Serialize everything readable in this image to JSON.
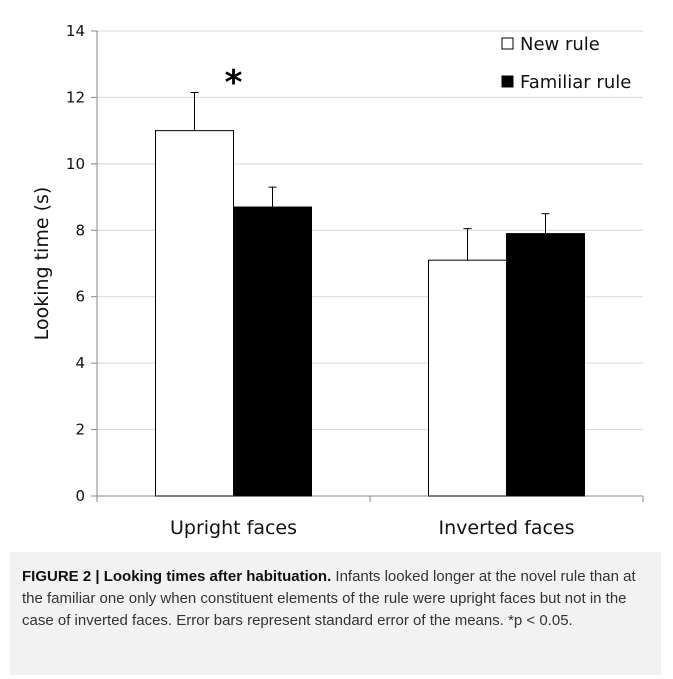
{
  "chart_data": {
    "type": "bar",
    "categories": [
      "Upright faces",
      "Inverted faces"
    ],
    "series": [
      {
        "name": "New rule",
        "values": [
          11.0,
          7.1
        ],
        "errors": [
          1.15,
          0.95
        ],
        "fill": "#ffffff"
      },
      {
        "name": "Familiar rule",
        "values": [
          8.7,
          7.9
        ],
        "errors": [
          0.6,
          0.6
        ],
        "fill": "#000000"
      }
    ],
    "ylabel": "Looking time (s)",
    "xlabel": "",
    "ylim": [
      0,
      14
    ],
    "yticks": [
      "0",
      "2",
      "4",
      "6",
      "8",
      "10",
      "12",
      "14"
    ],
    "grid": true,
    "legend_position": "top-right",
    "annotations": [
      {
        "text": "*",
        "category": "Upright faces"
      }
    ]
  },
  "caption": {
    "label": "FIGURE 2 |",
    "title": "Looking times after habituation.",
    "text": "Infants looked longer at the novel rule than at the familiar one only when constituent elements of the rule were upright faces but not in the case of inverted faces. Error bars represent standard error of the means. *p < 0.05."
  },
  "colors": {
    "grid": "#d9d9d9",
    "axis": "#888888",
    "caption_bg": "#f2f2f2"
  }
}
